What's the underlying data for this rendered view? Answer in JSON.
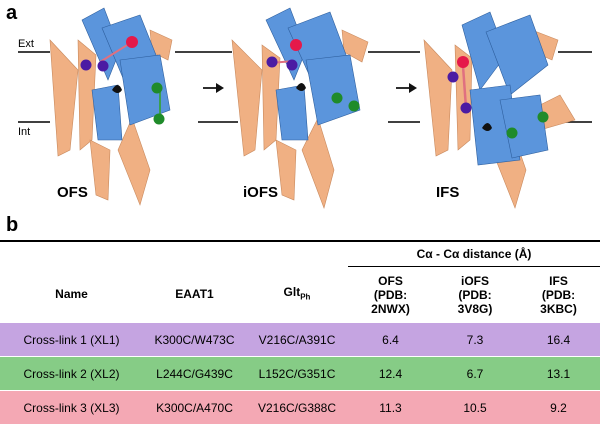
{
  "panel_a": {
    "label": "a",
    "states": [
      "OFS",
      "iOFS",
      "IFS"
    ],
    "membrane_labels": {
      "ext": "Ext",
      "int": "Int"
    },
    "colors": {
      "scaffold": "#f0b083",
      "transport_domain": "#5b95dc",
      "bead_red": "#e5194a",
      "bead_purple": "#4b1ba3",
      "bead_green": "#1f8b2a",
      "ligand": "#111111"
    }
  },
  "panel_b": {
    "label": "b",
    "header": {
      "name": "Name",
      "eaat1": "EAAT1",
      "glt_main": "Glt",
      "glt_sub": "Ph",
      "distance": "Cα - Cα distance (Å)",
      "ofs": [
        "OFS",
        "(PDB:",
        "2NWX)"
      ],
      "iofs": [
        "iOFS",
        "(PDB:",
        "3V8G)"
      ],
      "ifs": [
        "IFS",
        "(PDB:",
        "3KBC)"
      ]
    },
    "rows": [
      {
        "name": "Cross-link 1 (XL1)",
        "eaat1": "K300C/W473C",
        "glt": "V216C/A391C",
        "ofs": "6.4",
        "iofs": "7.3",
        "ifs": "16.4",
        "color": "#c5a4e1"
      },
      {
        "name": "Cross-link 2 (XL2)",
        "eaat1": "L244C/G439C",
        "glt": "L152C/G351C",
        "ofs": "12.4",
        "iofs": "6.7",
        "ifs": "13.1",
        "color": "#86cc86"
      },
      {
        "name": "Cross-link 3 (XL3)",
        "eaat1": "K300C/A470C",
        "glt": "V216C/G388C",
        "ofs": "11.3",
        "iofs": "10.5",
        "ifs": "9.2",
        "color": "#f4a8b4"
      }
    ]
  }
}
